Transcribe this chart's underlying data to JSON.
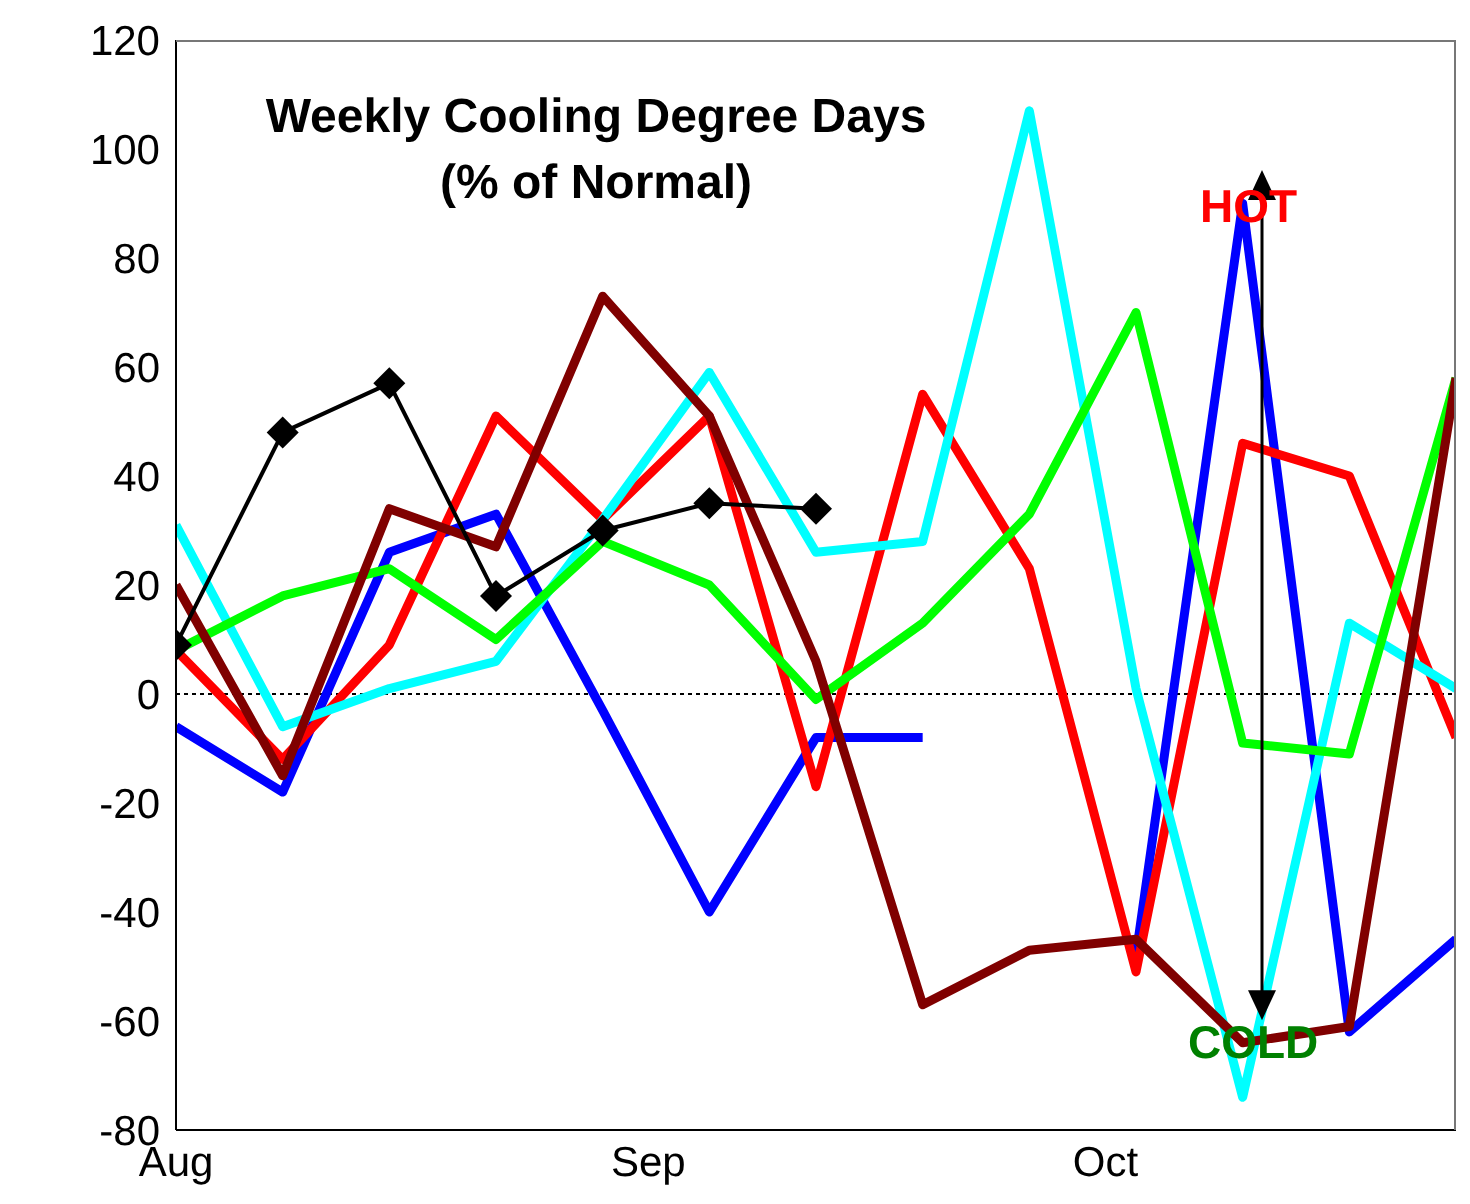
{
  "chart_data": {
    "type": "line",
    "title": "Weekly Cooling Degree Days\n(% of Normal)",
    "x": [
      "--08-01",
      "--08-08",
      "--08-15",
      "--08-22",
      "--08-29",
      "--09-05",
      "--09-12",
      "--09-19",
      "--09-26",
      "--10-03",
      "--10-10",
      "--10-17",
      "--10-24"
    ],
    "series": [
      {
        "color": "#0000ff",
        "values": [
          -6,
          -18,
          26,
          33,
          -3,
          -40,
          -8,
          -8,
          null,
          -48,
          90,
          -62,
          -45
        ]
      },
      {
        "color": "#ff0000",
        "values": [
          8,
          -12,
          9,
          51,
          32,
          51,
          -17,
          55,
          23,
          -51,
          46,
          40,
          -8
        ]
      },
      {
        "color": "#00ffff",
        "values": [
          31,
          -6,
          1,
          6,
          32,
          59,
          26,
          28,
          107,
          1,
          -74,
          13,
          1
        ]
      },
      {
        "color": "#00ff00",
        "values": [
          8,
          18,
          23,
          10,
          28,
          20,
          -1,
          13,
          33,
          70,
          -9,
          -11,
          58
        ]
      },
      {
        "color": "#800000",
        "values": [
          20,
          -15,
          34,
          27,
          73,
          51,
          6,
          -57,
          -47,
          -45,
          -64,
          -61,
          58
        ]
      },
      {
        "color": "#000000",
        "marker": "diamond",
        "values": [
          9,
          48,
          57,
          18,
          30,
          35,
          34,
          null,
          null,
          null,
          null,
          null,
          null
        ]
      }
    ],
    "xlim": [
      "--08-01",
      "--10-24"
    ],
    "xticks": [
      {
        "value": "--08-01",
        "label": "Aug"
      },
      {
        "value": "--09-01",
        "label": "Sep"
      },
      {
        "value": "--10-01",
        "label": "Oct"
      }
    ],
    "ylim": [
      -80,
      120
    ],
    "yticks": [
      -80,
      -60,
      -40,
      -20,
      0,
      20,
      40,
      60,
      80,
      100,
      120
    ],
    "ref_lines": [
      {
        "axis": "y",
        "value": 0,
        "color": "#000000",
        "line_style": "dotted"
      }
    ],
    "annotations": [
      "HOT",
      "COLD"
    ],
    "marker": "none",
    "grid": false
  }
}
